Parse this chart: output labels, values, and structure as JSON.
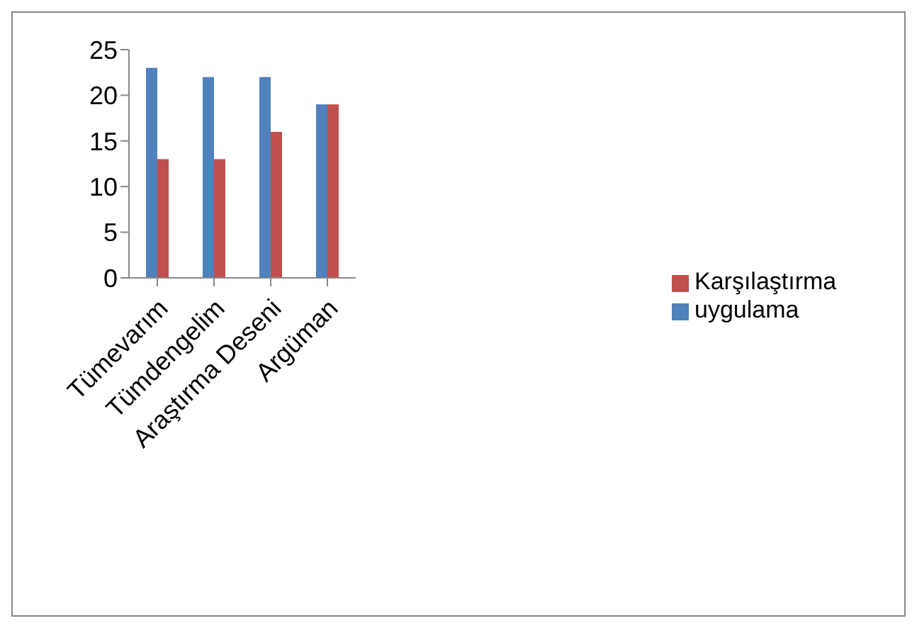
{
  "chart_data": {
    "type": "bar",
    "categories": [
      "Tümevarım",
      "Tümdengelim",
      "Araştırma Deseni",
      "Argüman"
    ],
    "series": [
      {
        "name": "uygulama",
        "color": "#4f81bd",
        "values": [
          23,
          22,
          22,
          19
        ]
      },
      {
        "name": "Karşılaştırma",
        "color": "#c0504d",
        "values": [
          13,
          13,
          16,
          19
        ]
      }
    ],
    "ylim": [
      0,
      25
    ],
    "yticks": [
      0,
      5,
      10,
      15,
      20,
      25
    ],
    "grid": false,
    "legend": "right"
  }
}
